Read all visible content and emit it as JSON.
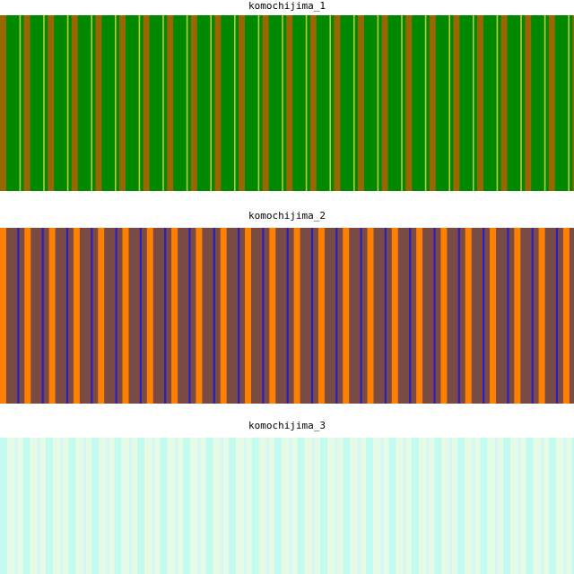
{
  "panels": [
    {
      "title": "komochijima_1",
      "colors": {
        "ground": "#008800",
        "main_stripe": "#996600",
        "thin_stripe": "#bbcc33"
      }
    },
    {
      "title": "komochijima_2",
      "colors": {
        "ground": "#7a4a45",
        "main_stripe": "#ff7f00",
        "thin_stripe": "#2a1fbf"
      }
    },
    {
      "title": "komochijima_3",
      "colors": {
        "ground": "#e6fbe6",
        "main_stripe": "#c4fbf0",
        "thin_stripe": "#d6f7f7"
      }
    }
  ]
}
